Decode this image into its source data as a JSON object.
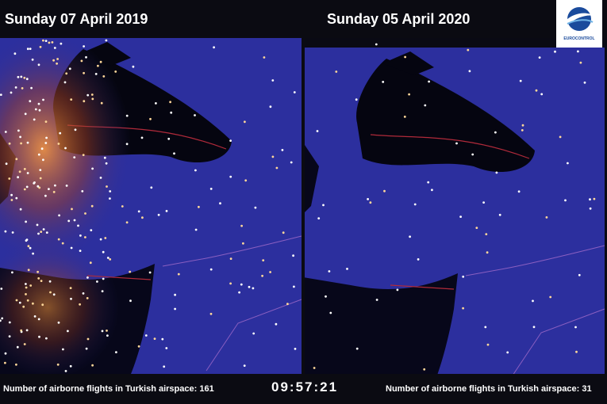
{
  "header": {
    "left_title": "Sunday 07 April 2019",
    "right_title": "Sunday 05 April 2020",
    "logo_text": "EUROCONTROL"
  },
  "footer": {
    "left_caption": "Number of airborne flights in Turkish airspace: 161",
    "clock": "09:57:21",
    "right_caption": "Number of airborne flights in Turkish airspace: 31"
  }
}
